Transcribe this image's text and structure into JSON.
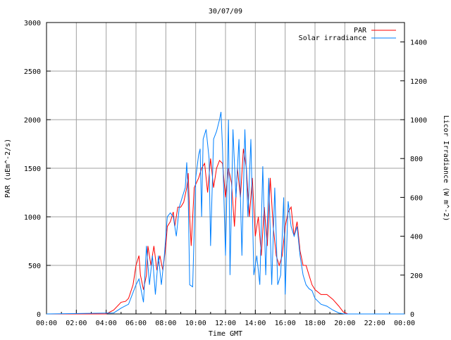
{
  "chart_data": {
    "type": "line",
    "title": "30/07/09",
    "xlabel": "Time GMT",
    "ylabel": "PAR (uEm^-2/s)",
    "y2label": "Licor Irradiance (W m^-2)",
    "xlim": [
      0,
      24
    ],
    "ylim": [
      0,
      3000
    ],
    "y2lim": [
      0,
      1500
    ],
    "grid": true,
    "legend_position": "top-right",
    "x_ticks": [
      0,
      2,
      4,
      6,
      8,
      10,
      12,
      14,
      16,
      18,
      20,
      22,
      24
    ],
    "x_tick_labels": [
      "00:00",
      "02:00",
      "04:00",
      "06:00",
      "08:00",
      "10:00",
      "12:00",
      "14:00",
      "16:00",
      "18:00",
      "20:00",
      "22:00",
      "00:00"
    ],
    "y_ticks": [
      0,
      500,
      1000,
      1500,
      2000,
      2500,
      3000
    ],
    "y_tick_labels": [
      "0",
      "500",
      "1000",
      "1500",
      "2000",
      "2500",
      "3000"
    ],
    "y2_ticks": [
      0,
      200,
      400,
      600,
      800,
      1000,
      1200,
      1400
    ],
    "y2_tick_labels": [
      "0",
      "200",
      "400",
      "600",
      "800",
      "1000",
      "1200",
      "1400"
    ],
    "series": [
      {
        "name": "PAR",
        "axis": "left",
        "color": "#ff0000",
        "x": [
          0,
          4,
          4.5,
          5,
          5.3,
          5.5,
          5.8,
          6,
          6.2,
          6.3,
          6.5,
          6.7,
          6.8,
          7,
          7.2,
          7.4,
          7.6,
          7.8,
          8,
          8.1,
          8.3,
          8.5,
          8.6,
          8.8,
          9,
          9.2,
          9.4,
          9.5,
          9.6,
          9.7,
          9.9,
          10.2,
          10.4,
          10.6,
          10.8,
          11,
          11.2,
          11.4,
          11.6,
          11.8,
          12,
          12.2,
          12.4,
          12.6,
          12.8,
          13,
          13.2,
          13.4,
          13.6,
          13.8,
          14,
          14.2,
          14.4,
          14.6,
          14.8,
          15,
          15.2,
          15.4,
          15.6,
          15.8,
          16,
          16.2,
          16.4,
          16.6,
          16.8,
          17,
          17.2,
          17.4,
          17.6,
          17.8,
          18,
          18.4,
          18.8,
          19.2,
          19.6,
          19.9,
          20.2,
          24
        ],
        "y": [
          0,
          0,
          40,
          120,
          130,
          160,
          300,
          500,
          600,
          400,
          250,
          400,
          700,
          500,
          700,
          450,
          600,
          450,
          700,
          900,
          950,
          1050,
          900,
          1100,
          1100,
          1150,
          1300,
          1450,
          1000,
          700,
          1300,
          1400,
          1500,
          1550,
          1250,
          1600,
          1300,
          1500,
          1580,
          1550,
          1200,
          1500,
          1350,
          900,
          1500,
          1200,
          1700,
          1500,
          1000,
          1400,
          800,
          1000,
          600,
          1100,
          700,
          1400,
          900,
          600,
          500,
          600,
          900,
          1050,
          1100,
          800,
          950,
          650,
          500,
          500,
          400,
          300,
          250,
          200,
          200,
          150,
          80,
          20,
          0,
          0
        ]
      },
      {
        "name": "Solar irradiance",
        "axis": "right",
        "color": "#0080ff",
        "x": [
          0,
          4.5,
          5,
          5.5,
          6,
          6.2,
          6.4,
          6.5,
          6.7,
          6.9,
          7.1,
          7.3,
          7.5,
          7.7,
          7.9,
          8.1,
          8.3,
          8.5,
          8.7,
          8.9,
          9.1,
          9.3,
          9.4,
          9.5,
          9.6,
          9.8,
          10,
          10.2,
          10.3,
          10.4,
          10.5,
          10.7,
          10.9,
          11,
          11.2,
          11.4,
          11.6,
          11.7,
          11.8,
          12,
          12.2,
          12.3,
          12.5,
          12.7,
          12.9,
          13.1,
          13.3,
          13.5,
          13.7,
          13.9,
          14.1,
          14.3,
          14.5,
          14.7,
          14.9,
          15.1,
          15.3,
          15.5,
          15.7,
          15.9,
          16,
          16.2,
          16.4,
          16.6,
          16.8,
          17,
          17.2,
          17.4,
          17.6,
          17.8,
          18,
          18.4,
          18.8,
          19.2,
          19.6,
          20,
          24
        ],
        "y": [
          0,
          5,
          30,
          50,
          150,
          180,
          100,
          60,
          350,
          150,
          300,
          100,
          300,
          150,
          300,
          500,
          520,
          500,
          400,
          550,
          600,
          650,
          780,
          600,
          150,
          140,
          700,
          820,
          850,
          500,
          900,
          950,
          800,
          350,
          900,
          940,
          1000,
          1040,
          850,
          300,
          1000,
          200,
          950,
          600,
          900,
          300,
          950,
          500,
          900,
          200,
          300,
          150,
          760,
          200,
          700,
          150,
          650,
          150,
          200,
          600,
          100,
          580,
          450,
          400,
          450,
          300,
          200,
          150,
          130,
          120,
          80,
          50,
          40,
          20,
          5,
          0,
          0
        ]
      }
    ]
  }
}
